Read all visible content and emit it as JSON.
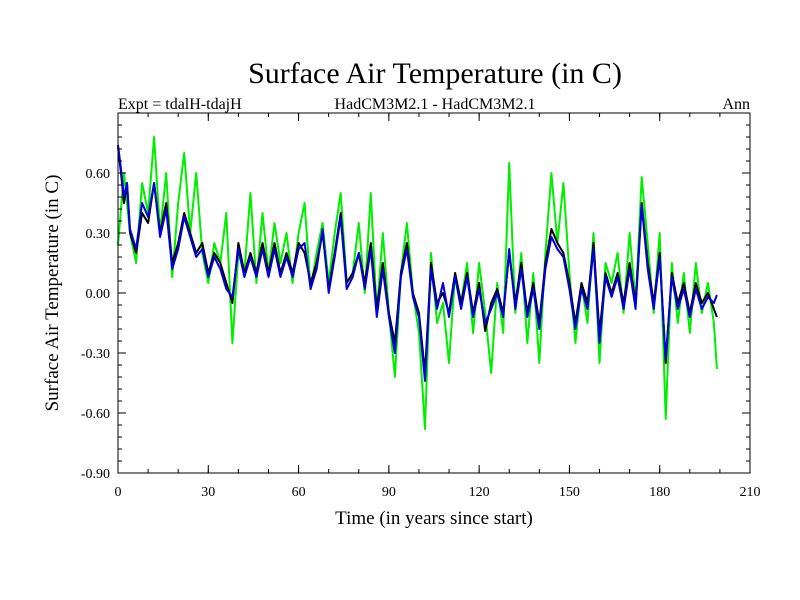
{
  "chart_data": {
    "type": "line",
    "title": "Surface Air Temperature (in C)",
    "subtitle_left": "Expt = tdalH-tdajH",
    "subtitle_center": "HadCM3M2.1 - HadCM3M2.1",
    "subtitle_right": "Ann",
    "xlabel": "Time (in years since start)",
    "ylabel": "Surface Air Temperature (in C)",
    "xlim": [
      0,
      210
    ],
    "ylim": [
      -0.9,
      0.9
    ],
    "xticks": [
      0,
      30,
      60,
      90,
      120,
      150,
      180,
      210
    ],
    "yticks": [
      -0.9,
      -0.6,
      -0.3,
      0.0,
      0.3,
      0.6
    ],
    "xtick_labels": [
      "0",
      "30",
      "60",
      "90",
      "120",
      "150",
      "180",
      "210"
    ],
    "ytick_labels": [
      "-0.90",
      "-0.60",
      "-0.30",
      "0.00",
      "0.30",
      "0.60"
    ],
    "grid": false,
    "series": [
      {
        "name": "green",
        "color": "#00ee00",
        "x": [
          0,
          2,
          4,
          6,
          8,
          10,
          12,
          14,
          16,
          18,
          20,
          22,
          24,
          26,
          28,
          30,
          32,
          34,
          36,
          38,
          40,
          42,
          44,
          46,
          48,
          50,
          52,
          54,
          56,
          58,
          60,
          62,
          64,
          66,
          68,
          70,
          72,
          74,
          76,
          78,
          80,
          82,
          84,
          86,
          88,
          90,
          92,
          94,
          96,
          98,
          100,
          102,
          104,
          106,
          108,
          110,
          112,
          114,
          116,
          118,
          120,
          122,
          124,
          126,
          128,
          130,
          132,
          134,
          136,
          138,
          140,
          142,
          144,
          146,
          148,
          150,
          152,
          154,
          156,
          158,
          160,
          162,
          164,
          166,
          168,
          170,
          172,
          174,
          176,
          178,
          180,
          182,
          184,
          186,
          188,
          190,
          192,
          194,
          196,
          198,
          199
        ],
        "values": [
          0.24,
          0.6,
          0.3,
          0.15,
          0.55,
          0.4,
          0.78,
          0.3,
          0.6,
          0.08,
          0.45,
          0.7,
          0.3,
          0.6,
          0.2,
          0.05,
          0.25,
          0.15,
          0.4,
          -0.25,
          0.2,
          0.1,
          0.5,
          0.05,
          0.4,
          0.1,
          0.35,
          0.15,
          0.3,
          0.05,
          0.3,
          0.45,
          0.02,
          0.2,
          0.35,
          0.05,
          0.3,
          0.5,
          0.05,
          0.1,
          0.35,
          0.0,
          0.5,
          -0.1,
          0.3,
          -0.1,
          -0.42,
          0.1,
          0.35,
          0.0,
          -0.2,
          -0.68,
          0.2,
          -0.15,
          -0.05,
          -0.35,
          0.1,
          -0.05,
          0.15,
          -0.2,
          0.15,
          -0.1,
          -0.4,
          0.05,
          -0.2,
          0.65,
          -0.1,
          0.2,
          -0.25,
          0.1,
          -0.35,
          0.2,
          0.6,
          0.25,
          0.55,
          0.1,
          -0.25,
          0.05,
          -0.15,
          0.3,
          -0.35,
          0.15,
          0.05,
          0.2,
          -0.1,
          0.3,
          -0.05,
          0.58,
          0.25,
          -0.1,
          0.3,
          -0.63,
          0.15,
          -0.15,
          0.1,
          -0.2,
          0.15,
          -0.1,
          0.05,
          -0.15,
          -0.38
        ]
      },
      {
        "name": "black",
        "color": "#000000",
        "x": [
          0,
          1,
          2,
          3,
          4,
          6,
          8,
          10,
          12,
          14,
          16,
          18,
          20,
          22,
          24,
          26,
          28,
          30,
          32,
          34,
          36,
          38,
          40,
          42,
          44,
          46,
          48,
          50,
          52,
          54,
          56,
          58,
          60,
          62,
          64,
          66,
          68,
          70,
          72,
          74,
          76,
          78,
          80,
          82,
          84,
          86,
          88,
          90,
          92,
          94,
          96,
          98,
          100,
          102,
          104,
          106,
          108,
          110,
          112,
          114,
          116,
          118,
          120,
          122,
          124,
          126,
          128,
          130,
          132,
          134,
          136,
          138,
          140,
          142,
          144,
          146,
          148,
          150,
          152,
          154,
          156,
          158,
          160,
          162,
          164,
          166,
          168,
          170,
          172,
          174,
          176,
          178,
          180,
          182,
          184,
          186,
          188,
          190,
          192,
          194,
          196,
          198,
          199
        ],
        "values": [
          0.73,
          0.6,
          0.45,
          0.55,
          0.3,
          0.2,
          0.4,
          0.35,
          0.55,
          0.3,
          0.45,
          0.15,
          0.25,
          0.4,
          0.3,
          0.2,
          0.25,
          0.1,
          0.2,
          0.15,
          0.05,
          -0.05,
          0.25,
          0.1,
          0.2,
          0.1,
          0.25,
          0.1,
          0.25,
          0.1,
          0.2,
          0.1,
          0.25,
          0.2,
          0.05,
          0.15,
          0.3,
          0.02,
          0.2,
          0.4,
          0.05,
          0.1,
          0.2,
          0.05,
          0.25,
          -0.08,
          0.15,
          -0.1,
          -0.25,
          0.1,
          0.25,
          0.0,
          -0.1,
          -0.4,
          0.15,
          -0.05,
          0.0,
          -0.1,
          0.1,
          -0.05,
          0.1,
          -0.1,
          0.05,
          -0.19,
          -0.05,
          0.02,
          -0.1,
          0.2,
          -0.05,
          0.15,
          -0.1,
          0.05,
          -0.15,
          0.15,
          0.32,
          0.25,
          0.2,
          0.05,
          -0.15,
          0.05,
          -0.05,
          0.25,
          -0.2,
          0.1,
          0.0,
          0.1,
          -0.05,
          0.15,
          -0.05,
          0.45,
          0.15,
          -0.05,
          0.2,
          -0.35,
          0.1,
          -0.05,
          0.05,
          -0.1,
          0.05,
          -0.05,
          0.0,
          -0.08,
          -0.12
        ]
      },
      {
        "name": "blue",
        "color": "#0000dd",
        "x": [
          0,
          1,
          2,
          3,
          4,
          6,
          8,
          10,
          12,
          14,
          16,
          18,
          20,
          22,
          24,
          26,
          28,
          30,
          32,
          34,
          36,
          38,
          40,
          42,
          44,
          46,
          48,
          50,
          52,
          54,
          56,
          58,
          60,
          62,
          64,
          66,
          68,
          70,
          72,
          74,
          76,
          78,
          80,
          82,
          84,
          86,
          88,
          90,
          92,
          94,
          96,
          98,
          100,
          102,
          104,
          106,
          108,
          110,
          112,
          114,
          116,
          118,
          120,
          122,
          124,
          126,
          128,
          130,
          132,
          134,
          136,
          138,
          140,
          142,
          144,
          146,
          148,
          150,
          152,
          154,
          156,
          158,
          160,
          162,
          164,
          166,
          168,
          170,
          172,
          174,
          176,
          178,
          180,
          182,
          184,
          186,
          188,
          190,
          192,
          194,
          196,
          198,
          199
        ],
        "values": [
          0.74,
          0.62,
          0.48,
          0.55,
          0.32,
          0.22,
          0.45,
          0.38,
          0.55,
          0.28,
          0.42,
          0.12,
          0.22,
          0.38,
          0.28,
          0.18,
          0.22,
          0.08,
          0.18,
          0.12,
          0.02,
          -0.02,
          0.22,
          0.08,
          0.18,
          0.08,
          0.22,
          0.08,
          0.22,
          0.08,
          0.18,
          0.08,
          0.22,
          0.25,
          0.02,
          0.12,
          0.32,
          0.0,
          0.18,
          0.38,
          0.02,
          0.08,
          0.2,
          0.02,
          0.22,
          -0.12,
          0.12,
          -0.12,
          -0.3,
          0.08,
          0.22,
          -0.02,
          -0.12,
          -0.44,
          0.12,
          -0.08,
          0.05,
          -0.12,
          0.08,
          -0.08,
          0.08,
          -0.12,
          0.02,
          -0.15,
          -0.08,
          0.0,
          -0.12,
          0.22,
          -0.08,
          0.12,
          -0.12,
          0.02,
          -0.18,
          0.12,
          0.28,
          0.22,
          0.18,
          0.02,
          -0.18,
          0.02,
          -0.08,
          0.22,
          -0.25,
          0.08,
          -0.02,
          0.08,
          -0.08,
          0.12,
          -0.08,
          0.44,
          0.12,
          -0.08,
          0.18,
          -0.33,
          0.08,
          -0.08,
          0.02,
          -0.12,
          0.02,
          -0.08,
          -0.02,
          -0.05,
          -0.01
        ]
      }
    ]
  }
}
